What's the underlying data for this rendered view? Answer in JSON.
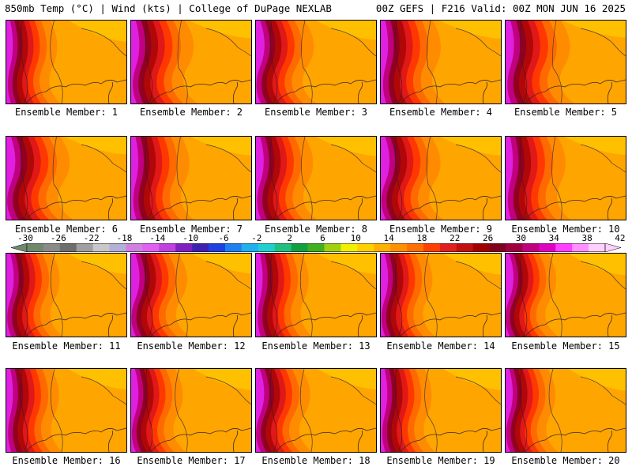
{
  "header": {
    "title": "850mb Temp (°C) | Wind (kts) | College of DuPage NEXLAB",
    "run_info": "00Z GEFS | F216 Valid: 00Z MON JUN 16 2025"
  },
  "panel_label_prefix": "Ensemble Member: ",
  "members": [
    {
      "label": "Ensemble Member: 1",
      "intensity": 0.55
    },
    {
      "label": "Ensemble Member: 2",
      "intensity": 0.85
    },
    {
      "label": "Ensemble Member: 3",
      "intensity": 0.7
    },
    {
      "label": "Ensemble Member: 4",
      "intensity": 0.8
    },
    {
      "label": "Ensemble Member: 5",
      "intensity": 0.9
    },
    {
      "label": "Ensemble Member: 6",
      "intensity": 0.85
    },
    {
      "label": "Ensemble Member: 7",
      "intensity": 0.75
    },
    {
      "label": "Ensemble Member: 8",
      "intensity": 0.7
    },
    {
      "label": "Ensemble Member: 9",
      "intensity": 0.75
    },
    {
      "label": "Ensemble Member: 10",
      "intensity": 0.8
    },
    {
      "label": "Ensemble Member: 11",
      "intensity": 0.6
    },
    {
      "label": "Ensemble Member: 12",
      "intensity": 0.65
    },
    {
      "label": "Ensemble Member: 13",
      "intensity": 0.6
    },
    {
      "label": "Ensemble Member: 14",
      "intensity": 0.55
    },
    {
      "label": "Ensemble Member: 15",
      "intensity": 0.5
    },
    {
      "label": "Ensemble Member: 16",
      "intensity": 0.6
    },
    {
      "label": "Ensemble Member: 17",
      "intensity": 0.55
    },
    {
      "label": "Ensemble Member: 18",
      "intensity": 0.6
    },
    {
      "label": "Ensemble Member: 19",
      "intensity": 0.55
    },
    {
      "label": "Ensemble Member: 20",
      "intensity": 0.5
    }
  ],
  "colorbar": {
    "unit": "°C",
    "tick_labels": [
      "-30",
      "-26",
      "-22",
      "-18",
      "-14",
      "-10",
      "-6",
      "-2",
      "2",
      "6",
      "10",
      "14",
      "18",
      "22",
      "26",
      "30",
      "34",
      "38",
      "42"
    ],
    "colors": [
      "#6e8a6e",
      "#8a8a8a",
      "#6e6e6e",
      "#a0a0a0",
      "#c8c8c8",
      "#b0b0d8",
      "#d080e0",
      "#e060f0",
      "#c040e0",
      "#8020c0",
      "#4020b0",
      "#2040e0",
      "#2080f0",
      "#20b0f0",
      "#20d0d0",
      "#20c080",
      "#10a040",
      "#40b020",
      "#a0d010",
      "#f0f000",
      "#ffd000",
      "#ffb000",
      "#ff9000",
      "#ff7000",
      "#ff4000",
      "#e02020",
      "#c01010",
      "#a00000",
      "#800020",
      "#a00040",
      "#c00080",
      "#e000c0",
      "#ff40ff",
      "#ff90ff",
      "#ffd0ff"
    ]
  }
}
